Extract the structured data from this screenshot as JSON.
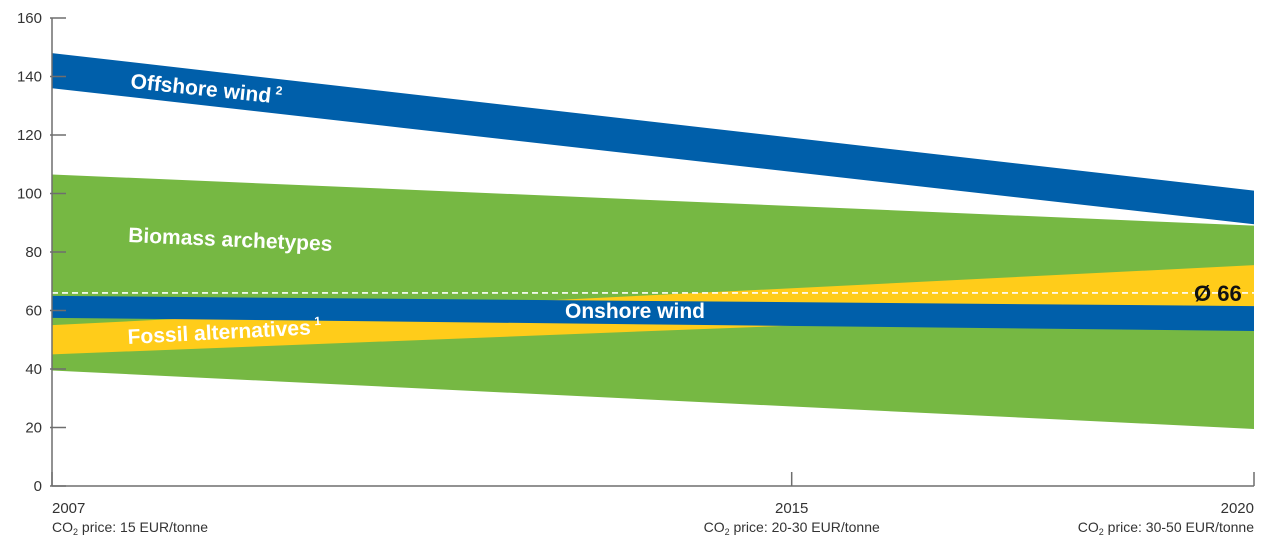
{
  "chart_data": {
    "type": "area",
    "x_ticks": [
      {
        "x": 2007,
        "label": "2007",
        "sub_prefix": "CO",
        "sub_index": "2",
        "sub_suffix": " price: 15 EUR/tonne"
      },
      {
        "x": 2015,
        "label": "2015",
        "sub_prefix": "CO",
        "sub_index": "2",
        "sub_suffix": " price: 20-30 EUR/tonne"
      },
      {
        "x": 2020,
        "label": "2020",
        "sub_prefix": "CO",
        "sub_index": "2",
        "sub_suffix": " price: 30-50 EUR/tonne"
      }
    ],
    "xlim": [
      2007,
      2020
    ],
    "ylim": [
      0,
      160
    ],
    "y_ticks": [
      0,
      20,
      40,
      60,
      80,
      100,
      120,
      140,
      160
    ],
    "bands": [
      {
        "id": "biomass",
        "name": "Biomass archetypes",
        "sup": "",
        "color": "#76b843",
        "x": [
          2007,
          2020
        ],
        "low": [
          39.5,
          19.5
        ],
        "high": [
          106.5,
          89
        ]
      },
      {
        "id": "fossil",
        "name": "Fossil alternatives",
        "sup": "1",
        "color": "#ffcc1a",
        "x": [
          2007,
          2020
        ],
        "low": [
          45,
          61
        ],
        "high": [
          55,
          75.5
        ]
      },
      {
        "id": "onshore",
        "name": "Onshore wind",
        "sup": "",
        "color": "#005faa",
        "x": [
          2007,
          2020
        ],
        "low": [
          57.5,
          53
        ],
        "high": [
          65,
          61.5
        ]
      },
      {
        "id": "offshore",
        "name": "Offshore wind",
        "sup": "2",
        "color": "#005faa",
        "x": [
          2007,
          2020
        ],
        "low": [
          136,
          89.5
        ],
        "high": [
          148,
          101
        ]
      }
    ],
    "average": {
      "value": 66,
      "label": "Ø 66",
      "color": "#ffffff"
    }
  }
}
